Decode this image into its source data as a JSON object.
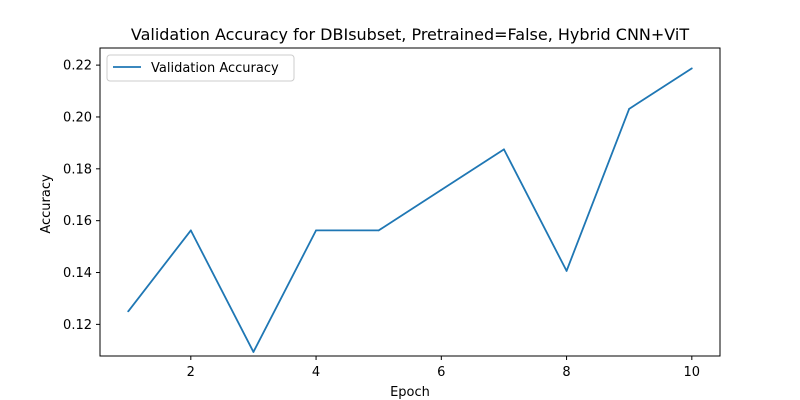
{
  "chart_data": {
    "type": "line",
    "title": "Validation Accuracy for DBIsubset, Pretrained=False, Hybrid CNN+ViT",
    "xlabel": "Epoch",
    "ylabel": "Accuracy",
    "xlim": [
      0.55,
      10.45
    ],
    "ylim": [
      0.1078,
      0.2266
    ],
    "xticks": [
      2,
      4,
      6,
      8,
      10
    ],
    "xtick_labels": [
      "2",
      "4",
      "6",
      "8",
      "10"
    ],
    "yticks": [
      0.12,
      0.14,
      0.16,
      0.18,
      0.2,
      0.22
    ],
    "ytick_labels": [
      "0.12",
      "0.14",
      "0.16",
      "0.18",
      "0.20",
      "0.22"
    ],
    "grid": false,
    "legend_position": "upper-left",
    "series": [
      {
        "name": "Validation Accuracy",
        "color": "#1f77b4",
        "x": [
          1,
          2,
          3,
          4,
          5,
          6,
          7,
          8,
          9,
          10
        ],
        "values": [
          0.125,
          0.15625,
          0.109375,
          0.15625,
          0.15625,
          0.171875,
          0.1875,
          0.140625,
          0.203125,
          0.21875
        ]
      }
    ]
  }
}
